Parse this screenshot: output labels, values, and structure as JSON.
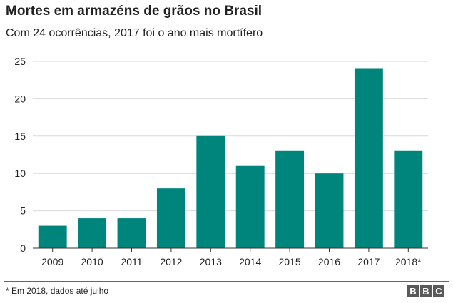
{
  "header": {
    "title": "Mortes em armazéns de grãos no Brasil",
    "subtitle": "Com 24 ocorrências, 2017 foi o ano mais mortífero"
  },
  "footer": {
    "note": "* Em 2018, dados até julho",
    "logo_letters": [
      "B",
      "B",
      "C"
    ]
  },
  "colors": {
    "bar": "#00857c",
    "grid": "#d9d9d9",
    "axis": "#333333"
  },
  "chart_data": {
    "type": "bar",
    "title": "Mortes em armazéns de grãos no Brasil",
    "subtitle": "Com 24 ocorrências, 2017 foi o ano mais mortífero",
    "categories": [
      "2009",
      "2010",
      "2011",
      "2012",
      "2013",
      "2014",
      "2015",
      "2016",
      "2017",
      "2018*"
    ],
    "values": [
      3,
      4,
      4,
      8,
      15,
      11,
      13,
      10,
      24,
      13
    ],
    "ylim": [
      0,
      25
    ],
    "yticks": [
      0,
      5,
      10,
      15,
      20,
      25
    ],
    "grid": true,
    "xlabel": "",
    "ylabel": ""
  }
}
